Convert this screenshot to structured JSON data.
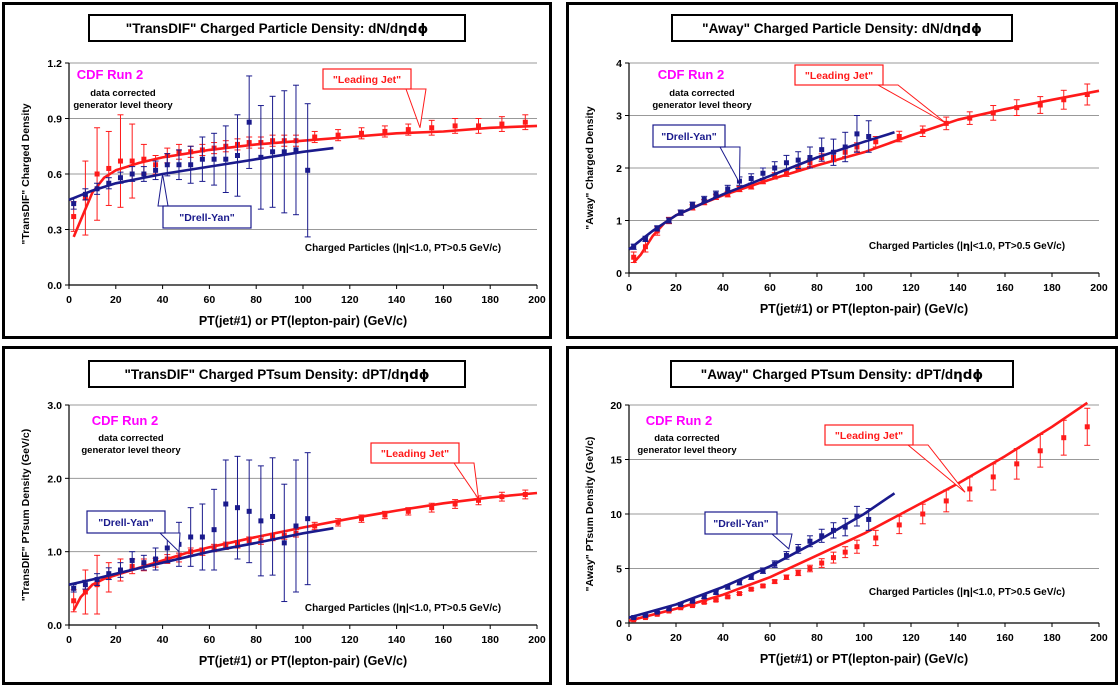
{
  "common": {
    "xlabel": "PT(jet#1) or PT(lepton-pair)  (GeV/c)",
    "cdf_label": "CDF Run 2",
    "note_line1": "data corrected",
    "note_line2": "generator level theory",
    "cuts_prefix": "Charged Particles (|",
    "cuts_eta": "η",
    "cuts_suffix": "|<1.0, PT>0.5 GeV/c)",
    "colors": {
      "jet": "#ff1a1a",
      "dy": "#1a1a8c",
      "cdf": "#ff00ff",
      "grid": "#999999"
    }
  },
  "chart_data": [
    {
      "type": "scatter",
      "title_prefix": "\"TransDIF\" Charged Particle Density: dN/d",
      "title_greek": "ηdϕ",
      "ylabel": "\"TransDIF\" Charged Density",
      "xlim": [
        0,
        200
      ],
      "ylim": [
        0,
        1.2
      ],
      "xticks": [
        0,
        20,
        40,
        60,
        80,
        100,
        120,
        140,
        160,
        180,
        200
      ],
      "yticks": [
        0,
        0.3,
        0.6,
        0.9,
        1.2
      ],
      "ytick_labels": [
        "0.0",
        "0.3",
        "0.6",
        "0.9",
        "1.2"
      ],
      "callouts": {
        "jet": "\"Leading Jet\"",
        "dy": "\"Drell-Yan\""
      },
      "series": [
        {
          "name": "\"Leading Jet\"",
          "color": "#ff1a1a",
          "x": [
            2,
            7,
            12,
            17,
            22,
            27,
            32,
            37,
            42,
            47,
            52,
            57,
            62,
            67,
            72,
            77,
            82,
            87,
            92,
            97,
            105,
            115,
            125,
            135,
            145,
            155,
            165,
            175,
            185,
            195
          ],
          "y": [
            0.37,
            0.47,
            0.6,
            0.63,
            0.67,
            0.67,
            0.68,
            0.65,
            0.7,
            0.72,
            0.72,
            0.73,
            0.74,
            0.75,
            0.76,
            0.77,
            0.77,
            0.78,
            0.78,
            0.78,
            0.8,
            0.81,
            0.82,
            0.83,
            0.84,
            0.85,
            0.86,
            0.86,
            0.87,
            0.88
          ],
          "err": [
            0.08,
            0.2,
            0.25,
            0.2,
            0.25,
            0.2,
            0.08,
            0.05,
            0.04,
            0.04,
            0.03,
            0.03,
            0.03,
            0.03,
            0.03,
            0.03,
            0.03,
            0.03,
            0.03,
            0.03,
            0.03,
            0.03,
            0.03,
            0.03,
            0.03,
            0.04,
            0.04,
            0.04,
            0.04,
            0.04
          ],
          "curve_x": [
            2,
            5,
            10,
            15,
            20,
            30,
            40,
            50,
            60,
            80,
            100,
            120,
            140,
            160,
            180,
            200
          ],
          "curve_y": [
            0.26,
            0.35,
            0.5,
            0.58,
            0.62,
            0.66,
            0.69,
            0.71,
            0.73,
            0.76,
            0.78,
            0.8,
            0.82,
            0.83,
            0.85,
            0.86
          ]
        },
        {
          "name": "\"Drell-Yan\"",
          "color": "#1a1a8c",
          "x": [
            2,
            7,
            12,
            17,
            22,
            27,
            32,
            37,
            42,
            47,
            52,
            57,
            62,
            67,
            72,
            77,
            82,
            87,
            92,
            97,
            102
          ],
          "y": [
            0.44,
            0.49,
            0.52,
            0.55,
            0.58,
            0.6,
            0.6,
            0.62,
            0.65,
            0.65,
            0.65,
            0.68,
            0.68,
            0.68,
            0.7,
            0.88,
            0.69,
            0.72,
            0.72,
            0.73,
            0.62
          ],
          "err": [
            0.03,
            0.03,
            0.03,
            0.03,
            0.03,
            0.04,
            0.04,
            0.05,
            0.06,
            0.08,
            0.1,
            0.12,
            0.14,
            0.18,
            0.22,
            0.25,
            0.28,
            0.3,
            0.33,
            0.35,
            0.36
          ],
          "curve_x": [
            0,
            10,
            20,
            40,
            60,
            80,
            100,
            113
          ],
          "curve_y": [
            0.46,
            0.51,
            0.55,
            0.6,
            0.64,
            0.68,
            0.72,
            0.74
          ]
        }
      ]
    },
    {
      "type": "scatter",
      "title_prefix": "\"Away\" Charged Particle Density: dN/d",
      "title_greek": "ηdϕ",
      "ylabel": "\"Away\" Charged Density",
      "xlim": [
        0,
        200
      ],
      "ylim": [
        0,
        4
      ],
      "xticks": [
        0,
        20,
        40,
        60,
        80,
        100,
        120,
        140,
        160,
        180,
        200
      ],
      "yticks": [
        0,
        1,
        2,
        3,
        4
      ],
      "ytick_labels": [
        "0",
        "1",
        "2",
        "3",
        "4"
      ],
      "callouts": {
        "jet": "\"Leading Jet\"",
        "dy": "\"Drell-Yan\""
      },
      "series": [
        {
          "name": "\"Leading Jet\"",
          "color": "#ff1a1a",
          "x": [
            2,
            7,
            12,
            17,
            22,
            27,
            32,
            37,
            42,
            47,
            52,
            57,
            62,
            67,
            72,
            77,
            82,
            87,
            92,
            97,
            105,
            115,
            125,
            135,
            145,
            155,
            165,
            175,
            185,
            195
          ],
          "y": [
            0.3,
            0.5,
            0.8,
            1.0,
            1.15,
            1.25,
            1.35,
            1.45,
            1.5,
            1.6,
            1.65,
            1.75,
            1.85,
            1.9,
            2.0,
            2.1,
            2.2,
            2.2,
            2.3,
            2.4,
            2.5,
            2.6,
            2.7,
            2.85,
            2.95,
            3.05,
            3.15,
            3.2,
            3.3,
            3.4
          ],
          "err": [
            0.1,
            0.1,
            0.08,
            0.06,
            0.05,
            0.05,
            0.05,
            0.05,
            0.05,
            0.05,
            0.05,
            0.05,
            0.06,
            0.06,
            0.06,
            0.07,
            0.07,
            0.08,
            0.08,
            0.08,
            0.1,
            0.1,
            0.1,
            0.12,
            0.12,
            0.14,
            0.15,
            0.16,
            0.18,
            0.2
          ],
          "curve_x": [
            2,
            5,
            10,
            15,
            20,
            30,
            40,
            50,
            60,
            80,
            100,
            120,
            140,
            160,
            180,
            200
          ],
          "curve_y": [
            0.2,
            0.35,
            0.7,
            0.95,
            1.1,
            1.3,
            1.48,
            1.63,
            1.78,
            2.05,
            2.3,
            2.62,
            2.92,
            3.12,
            3.3,
            3.47
          ]
        },
        {
          "name": "\"Drell-Yan\"",
          "color": "#1a1a8c",
          "x": [
            2,
            7,
            12,
            17,
            22,
            27,
            32,
            37,
            42,
            47,
            52,
            57,
            62,
            67,
            72,
            77,
            82,
            87,
            92,
            97,
            102
          ],
          "y": [
            0.5,
            0.65,
            0.85,
            1.0,
            1.15,
            1.3,
            1.4,
            1.5,
            1.6,
            1.75,
            1.8,
            1.9,
            2.0,
            2.1,
            2.15,
            2.2,
            2.35,
            2.3,
            2.4,
            2.65,
            2.6
          ],
          "err": [
            0.05,
            0.05,
            0.05,
            0.05,
            0.05,
            0.05,
            0.06,
            0.06,
            0.07,
            0.08,
            0.09,
            0.1,
            0.12,
            0.14,
            0.16,
            0.2,
            0.22,
            0.25,
            0.28,
            0.35,
            0.3
          ],
          "curve_x": [
            0,
            10,
            20,
            40,
            60,
            80,
            100,
            113
          ],
          "curve_y": [
            0.45,
            0.8,
            1.1,
            1.5,
            1.85,
            2.2,
            2.5,
            2.68
          ]
        }
      ]
    },
    {
      "type": "scatter",
      "title_prefix": "\"TransDIF\" Charged PTsum Density: dPT/d",
      "title_greek": "ηdϕ",
      "ylabel": "\"TransDIF\" PTsum Density (GeV/c)",
      "xlim": [
        0,
        200
      ],
      "ylim": [
        0,
        3
      ],
      "xticks": [
        0,
        20,
        40,
        60,
        80,
        100,
        120,
        140,
        160,
        180,
        200
      ],
      "yticks": [
        0,
        1,
        2,
        3
      ],
      "ytick_labels": [
        "0.0",
        "1.0",
        "2.0",
        "3.0"
      ],
      "callouts": {
        "jet": "\"Leading Jet\"",
        "dy": "\"Drell-Yan\""
      },
      "series": [
        {
          "name": "\"Leading Jet\"",
          "color": "#ff1a1a",
          "x": [
            2,
            7,
            12,
            17,
            22,
            27,
            32,
            37,
            42,
            47,
            52,
            57,
            62,
            67,
            72,
            77,
            82,
            87,
            92,
            97,
            105,
            115,
            125,
            135,
            145,
            155,
            165,
            175,
            185,
            195
          ],
          "y": [
            0.33,
            0.45,
            0.55,
            0.65,
            0.75,
            0.8,
            0.82,
            0.85,
            0.9,
            0.92,
            1.0,
            1.0,
            1.05,
            1.08,
            1.1,
            1.15,
            1.15,
            1.2,
            1.22,
            1.25,
            1.35,
            1.4,
            1.45,
            1.5,
            1.55,
            1.6,
            1.65,
            1.7,
            1.75,
            1.78
          ],
          "err": [
            0.15,
            0.3,
            0.4,
            0.2,
            0.15,
            0.1,
            0.08,
            0.06,
            0.06,
            0.06,
            0.05,
            0.05,
            0.05,
            0.05,
            0.05,
            0.05,
            0.05,
            0.05,
            0.05,
            0.05,
            0.05,
            0.05,
            0.05,
            0.05,
            0.05,
            0.06,
            0.06,
            0.06,
            0.06,
            0.06
          ],
          "curve_x": [
            2,
            5,
            10,
            15,
            20,
            30,
            40,
            50,
            60,
            80,
            100,
            120,
            140,
            160,
            180,
            200
          ],
          "curve_y": [
            0.2,
            0.38,
            0.55,
            0.63,
            0.68,
            0.78,
            0.88,
            0.98,
            1.06,
            1.2,
            1.33,
            1.45,
            1.56,
            1.66,
            1.74,
            1.8
          ]
        },
        {
          "name": "\"Drell-Yan\"",
          "color": "#1a1a8c",
          "x": [
            2,
            7,
            12,
            17,
            22,
            27,
            32,
            37,
            42,
            47,
            52,
            57,
            62,
            67,
            72,
            77,
            82,
            87,
            92,
            97,
            102
          ],
          "y": [
            0.5,
            0.55,
            0.62,
            0.7,
            0.75,
            0.88,
            0.85,
            0.9,
            1.05,
            1.1,
            1.2,
            1.2,
            1.3,
            1.65,
            1.6,
            1.55,
            1.42,
            1.48,
            1.12,
            1.35,
            1.45
          ],
          "err": [
            0.05,
            0.06,
            0.08,
            0.08,
            0.1,
            0.12,
            0.1,
            0.15,
            0.2,
            0.3,
            0.4,
            0.45,
            0.55,
            0.6,
            0.7,
            0.7,
            0.75,
            0.8,
            0.8,
            0.9,
            0.9
          ],
          "curve_x": [
            0,
            10,
            20,
            40,
            60,
            80,
            100,
            113
          ],
          "curve_y": [
            0.55,
            0.62,
            0.7,
            0.85,
            1.0,
            1.12,
            1.25,
            1.32
          ]
        }
      ]
    },
    {
      "type": "scatter",
      "title_prefix": "\"Away\" Charged PTsum Density: dPT/d",
      "title_greek": "ηdϕ",
      "ylabel": "\"Away\" PTsum Density (GeV/c)",
      "xlim": [
        0,
        200
      ],
      "ylim": [
        0,
        20
      ],
      "xticks": [
        0,
        20,
        40,
        60,
        80,
        100,
        120,
        140,
        160,
        180,
        200
      ],
      "yticks": [
        0,
        5,
        10,
        15,
        20
      ],
      "ytick_labels": [
        "0",
        "5",
        "10",
        "15",
        "20"
      ],
      "callouts": {
        "jet": "\"Leading Jet\"",
        "dy": "\"Drell-Yan\""
      },
      "series": [
        {
          "name": "\"Leading Jet\"",
          "color": "#ff1a1a",
          "x": [
            2,
            7,
            12,
            17,
            22,
            27,
            32,
            37,
            42,
            47,
            52,
            57,
            62,
            67,
            72,
            77,
            82,
            87,
            92,
            97,
            105,
            115,
            125,
            135,
            145,
            155,
            165,
            175,
            185,
            195
          ],
          "y": [
            0.3,
            0.5,
            0.8,
            1.1,
            1.4,
            1.6,
            1.9,
            2.1,
            2.4,
            2.7,
            3.1,
            3.4,
            3.8,
            4.2,
            4.6,
            5.0,
            5.5,
            6.0,
            6.5,
            7.0,
            7.8,
            9.0,
            10.0,
            11.2,
            12.3,
            13.4,
            14.6,
            15.8,
            17.0,
            18.0
          ],
          "err": [
            0.05,
            0.05,
            0.05,
            0.05,
            0.05,
            0.05,
            0.1,
            0.1,
            0.1,
            0.1,
            0.1,
            0.1,
            0.15,
            0.2,
            0.25,
            0.3,
            0.4,
            0.5,
            0.5,
            0.6,
            0.7,
            0.8,
            0.9,
            1.0,
            1.1,
            1.2,
            1.4,
            1.5,
            1.6,
            1.7
          ],
          "curve_x": [
            0,
            20,
            40,
            60,
            80,
            100,
            120,
            140,
            160,
            180,
            195
          ],
          "curve_y": [
            0.2,
            1.3,
            2.6,
            4.2,
            6.2,
            8.2,
            10.5,
            12.8,
            15.3,
            18.0,
            20.2
          ]
        },
        {
          "name": "\"Drell-Yan\"",
          "color": "#1a1a8c",
          "x": [
            2,
            7,
            12,
            17,
            22,
            27,
            32,
            37,
            42,
            47,
            52,
            57,
            62,
            67,
            72,
            77,
            82,
            87,
            92,
            97,
            102
          ],
          "y": [
            0.5,
            0.7,
            1.0,
            1.3,
            1.7,
            2.0,
            2.4,
            2.8,
            3.3,
            3.7,
            4.2,
            4.8,
            5.4,
            6.2,
            6.8,
            7.5,
            8.0,
            8.5,
            8.8,
            9.8,
            9.5
          ],
          "err": [
            0.05,
            0.05,
            0.05,
            0.1,
            0.1,
            0.1,
            0.15,
            0.15,
            0.2,
            0.2,
            0.2,
            0.25,
            0.3,
            0.35,
            0.4,
            0.5,
            0.6,
            0.7,
            0.8,
            0.9,
            1.0
          ],
          "curve_x": [
            0,
            20,
            40,
            60,
            80,
            100,
            113
          ],
          "curve_y": [
            0.5,
            1.7,
            3.3,
            5.2,
            7.5,
            10.0,
            11.9
          ]
        }
      ]
    }
  ]
}
